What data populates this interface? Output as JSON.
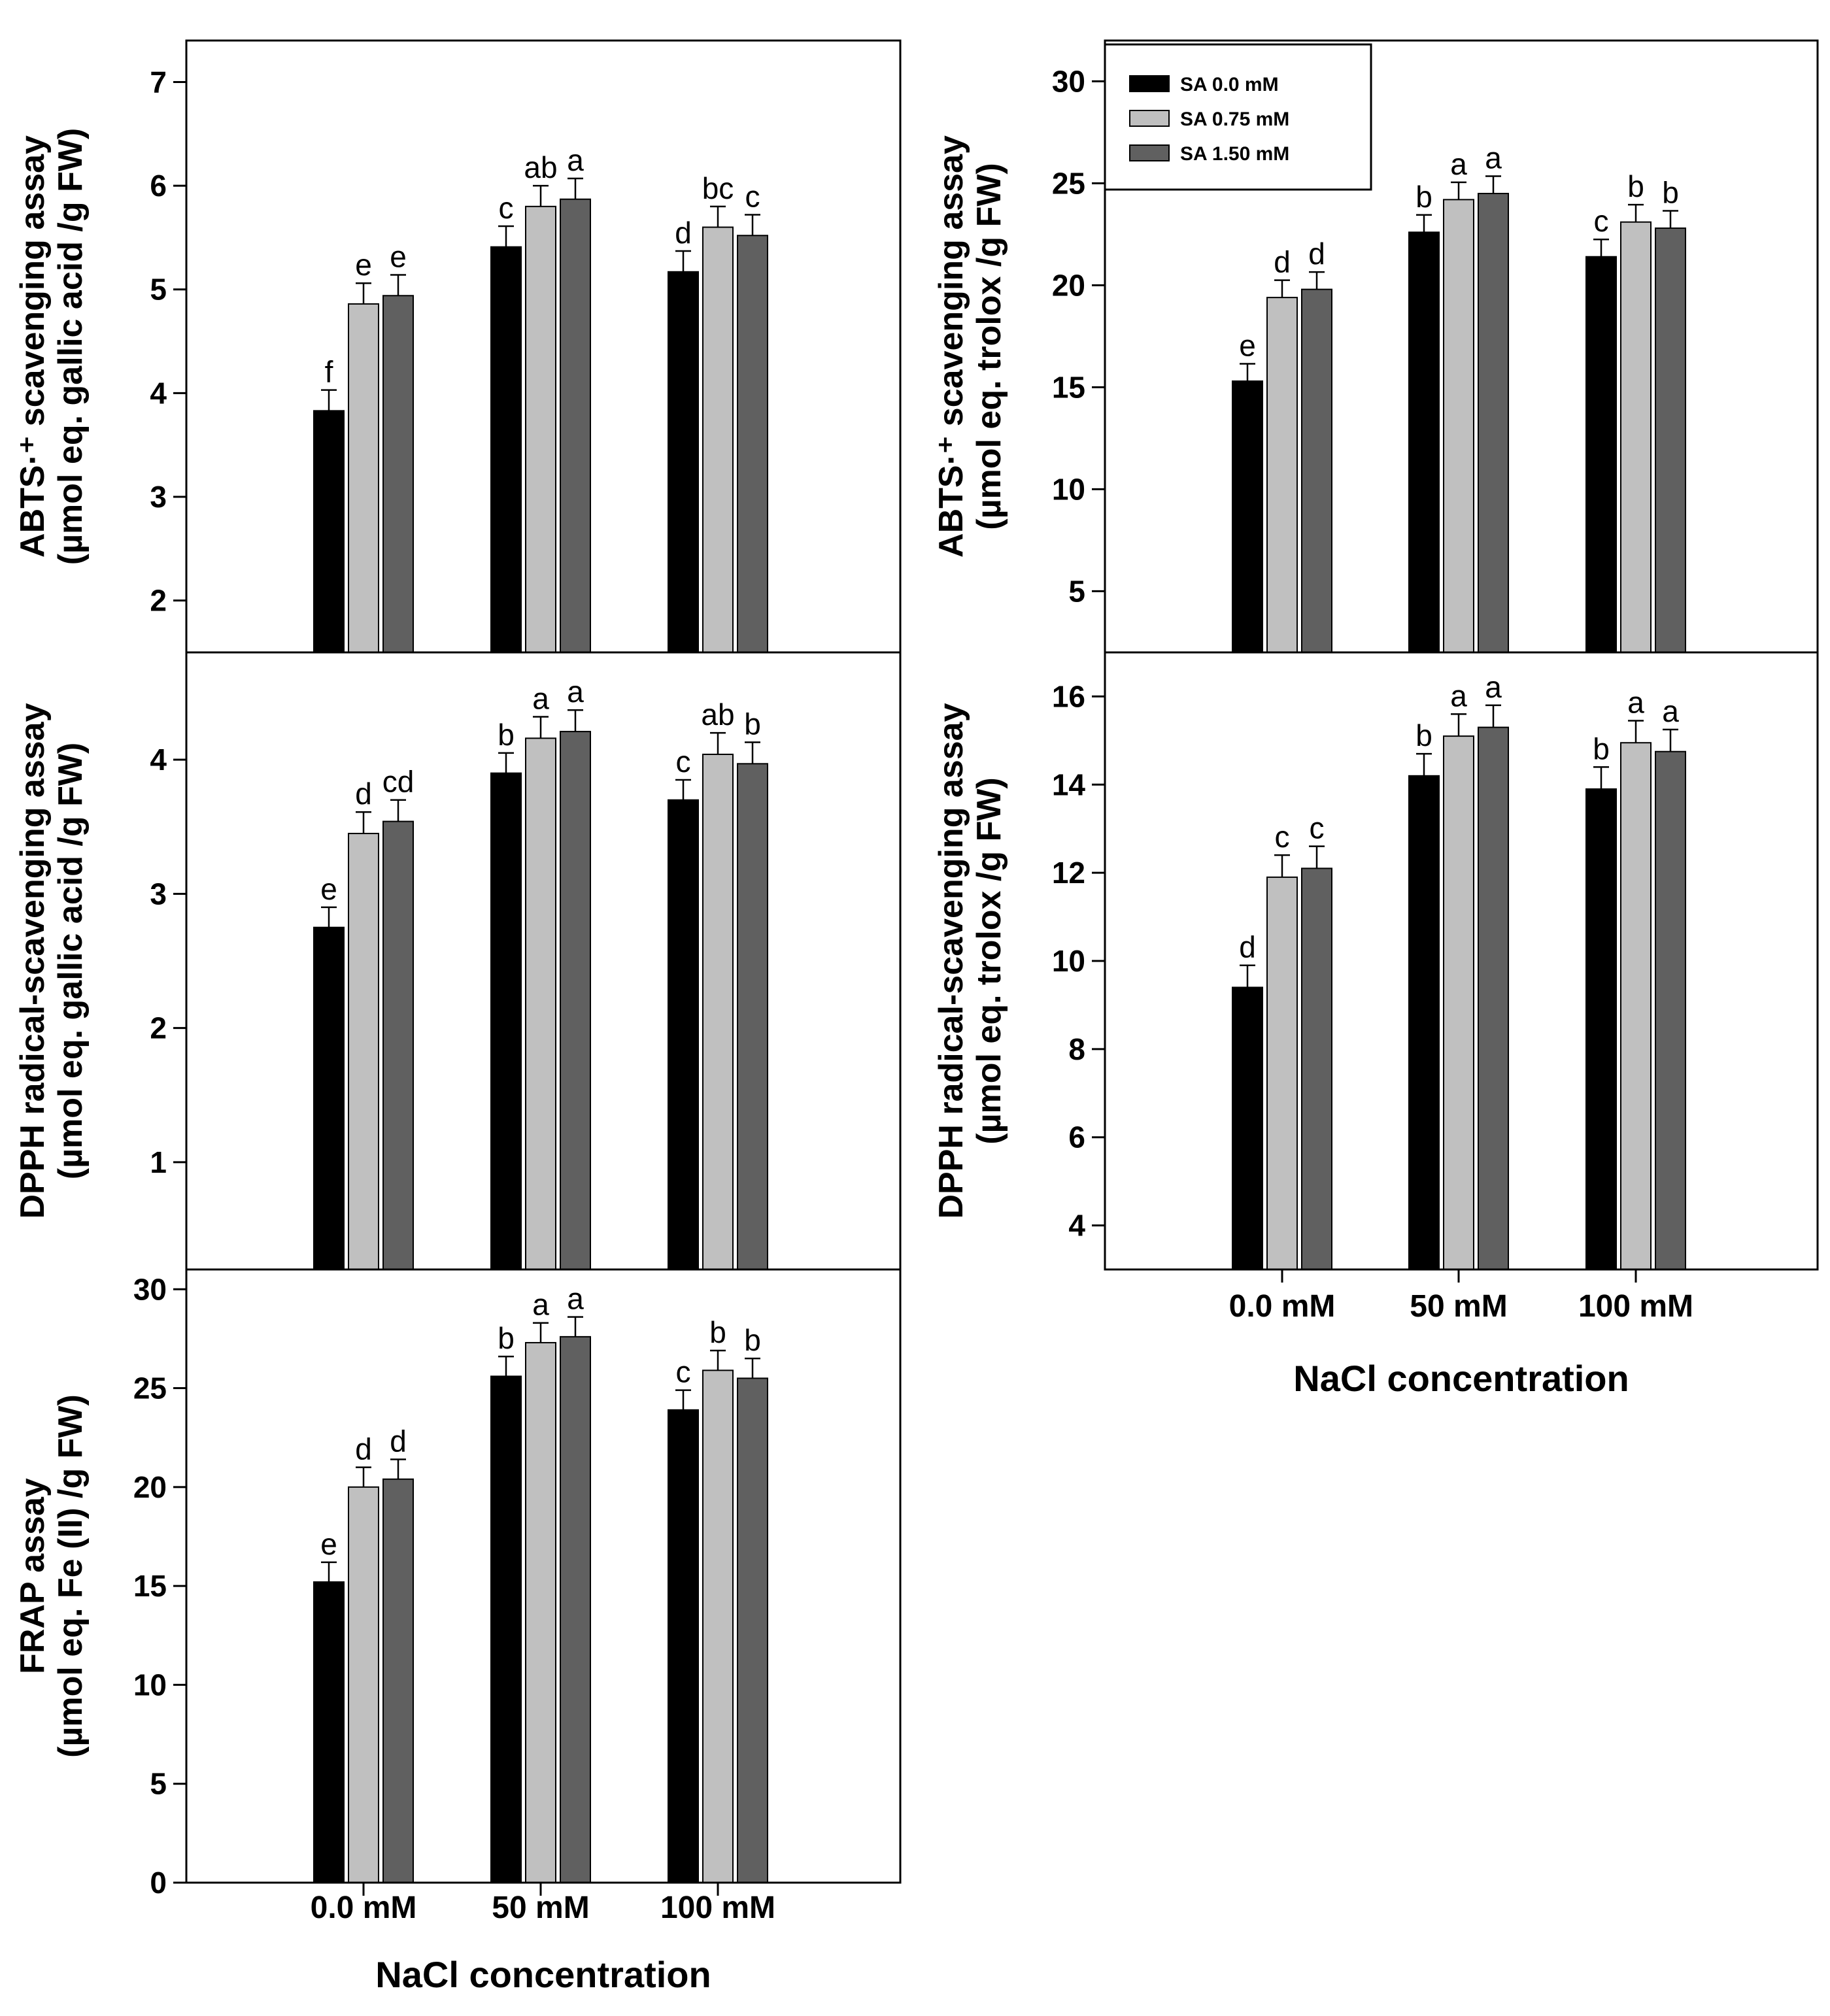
{
  "chart_data": [
    {
      "id": "abts-gallic",
      "type": "bar",
      "ylabel_line1": "ABTS·⁺ scavenging assay",
      "ylabel_line2": "(µmol eq. gallic acid /g FW)",
      "xlabel": "",
      "categories": [
        "0.0 mM",
        "50 mM",
        "100 mM"
      ],
      "ylim": [
        1.5,
        7.4
      ],
      "yticks": [
        2,
        3,
        4,
        5,
        6,
        7
      ],
      "series": [
        {
          "name": "SA 0.0 mM",
          "values": [
            3.83,
            5.41,
            5.17
          ],
          "errors": [
            0.2,
            0.2,
            0.2
          ],
          "labels": [
            "f",
            "c",
            "d"
          ]
        },
        {
          "name": "SA 0.75 mM",
          "values": [
            4.86,
            5.8,
            5.6
          ],
          "errors": [
            0.2,
            0.2,
            0.2
          ],
          "labels": [
            "e",
            "ab",
            "bc"
          ]
        },
        {
          "name": "SA 1.50 mM",
          "values": [
            4.94,
            5.87,
            5.52
          ],
          "errors": [
            0.2,
            0.2,
            0.2
          ],
          "labels": [
            "e",
            "a",
            "c"
          ]
        }
      ]
    },
    {
      "id": "dpph-gallic",
      "type": "bar",
      "ylabel_line1": "DPPH radical-scavenging assay",
      "ylabel_line2": "(µmol eq. gallic acid /g FW)",
      "xlabel": "",
      "categories": [
        "0.0 mM",
        "50 mM",
        "100 mM"
      ],
      "ylim": [
        0.2,
        4.8
      ],
      "yticks": [
        1,
        2,
        3,
        4
      ],
      "series": [
        {
          "name": "SA 0.0 mM",
          "values": [
            2.75,
            3.9,
            3.7
          ],
          "errors": [
            0.15,
            0.15,
            0.15
          ],
          "labels": [
            "e",
            "b",
            "c"
          ]
        },
        {
          "name": "SA 0.75 mM",
          "values": [
            3.45,
            4.16,
            4.04
          ],
          "errors": [
            0.16,
            0.16,
            0.16
          ],
          "labels": [
            "d",
            "a",
            "ab"
          ]
        },
        {
          "name": "SA 1.50 mM",
          "values": [
            3.54,
            4.21,
            3.97
          ],
          "errors": [
            0.16,
            0.16,
            0.16
          ],
          "labels": [
            "cd",
            "a",
            "b"
          ]
        }
      ]
    },
    {
      "id": "frap",
      "type": "bar",
      "ylabel_line1": "FRAP assay",
      "ylabel_line2": "(µmol eq. Fe (II) /g FW)",
      "xlabel": "NaCl concentration",
      "categories": [
        "0.0 mM",
        "50 mM",
        "100 mM"
      ],
      "ylim": [
        0,
        31
      ],
      "yticks": [
        0,
        5,
        10,
        15,
        20,
        25,
        30
      ],
      "series": [
        {
          "name": "SA 0.0 mM",
          "values": [
            15.2,
            25.6,
            23.9
          ],
          "errors": [
            1.0,
            1.0,
            1.0
          ],
          "labels": [
            "e",
            "b",
            "c"
          ]
        },
        {
          "name": "SA 0.75 mM",
          "values": [
            20.0,
            27.3,
            25.9
          ],
          "errors": [
            1.0,
            1.0,
            1.0
          ],
          "labels": [
            "d",
            "a",
            "b"
          ]
        },
        {
          "name": "SA 1.50 mM",
          "values": [
            20.4,
            27.6,
            25.5
          ],
          "errors": [
            1.0,
            1.0,
            1.0
          ],
          "labels": [
            "d",
            "a",
            "b"
          ]
        }
      ]
    },
    {
      "id": "abts-trolox",
      "type": "bar",
      "ylabel_line1": "ABTS·⁺ scavenging assay",
      "ylabel_line2": "(µmol eq. trolox /g FW)",
      "xlabel": "",
      "categories": [
        "0.0 mM",
        "50 mM",
        "100 mM"
      ],
      "ylim": [
        2,
        32
      ],
      "yticks": [
        5,
        10,
        15,
        20,
        25,
        30
      ],
      "series": [
        {
          "name": "SA 0.0 mM",
          "values": [
            15.3,
            22.6,
            21.4
          ],
          "errors": [
            0.85,
            0.85,
            0.85
          ],
          "labels": [
            "e",
            "b",
            "c"
          ]
        },
        {
          "name": "SA 0.75 mM",
          "values": [
            19.4,
            24.2,
            23.1
          ],
          "errors": [
            0.85,
            0.85,
            0.85
          ],
          "labels": [
            "d",
            "a",
            "b"
          ]
        },
        {
          "name": "SA 1.50 mM",
          "values": [
            19.8,
            24.5,
            22.8
          ],
          "errors": [
            0.85,
            0.85,
            0.85
          ],
          "labels": [
            "d",
            "a",
            "b"
          ]
        }
      ]
    },
    {
      "id": "dpph-trolox",
      "type": "bar",
      "ylabel_line1": "DPPH radical-scavenging assay",
      "ylabel_line2": "(µmol eq. trolox /g FW)",
      "xlabel": "NaCl concentration",
      "categories": [
        "0.0 mM",
        "50 mM",
        "100 mM"
      ],
      "ylim": [
        3,
        17
      ],
      "yticks": [
        4,
        6,
        8,
        10,
        12,
        14,
        16
      ],
      "series": [
        {
          "name": "SA 0.0 mM",
          "values": [
            9.4,
            14.2,
            13.9
          ],
          "errors": [
            0.5,
            0.5,
            0.5
          ],
          "labels": [
            "d",
            "b",
            "b"
          ]
        },
        {
          "name": "SA 0.75 mM",
          "values": [
            11.9,
            15.1,
            14.95
          ],
          "errors": [
            0.5,
            0.5,
            0.5
          ],
          "labels": [
            "c",
            "a",
            "a"
          ]
        },
        {
          "name": "SA 1.50 mM",
          "values": [
            12.1,
            15.3,
            14.75
          ],
          "errors": [
            0.5,
            0.5,
            0.5
          ],
          "labels": [
            "c",
            "a",
            "a"
          ]
        }
      ]
    }
  ],
  "legend": {
    "position": "top-left of ABTS trolox panel",
    "entries": [
      "SA 0.0 mM",
      "SA 0.75 mM",
      "SA 1.50 mM"
    ]
  },
  "colors": {
    "series": [
      "#000000",
      "#c0c0c0",
      "#606060"
    ],
    "axis": "#000000"
  }
}
